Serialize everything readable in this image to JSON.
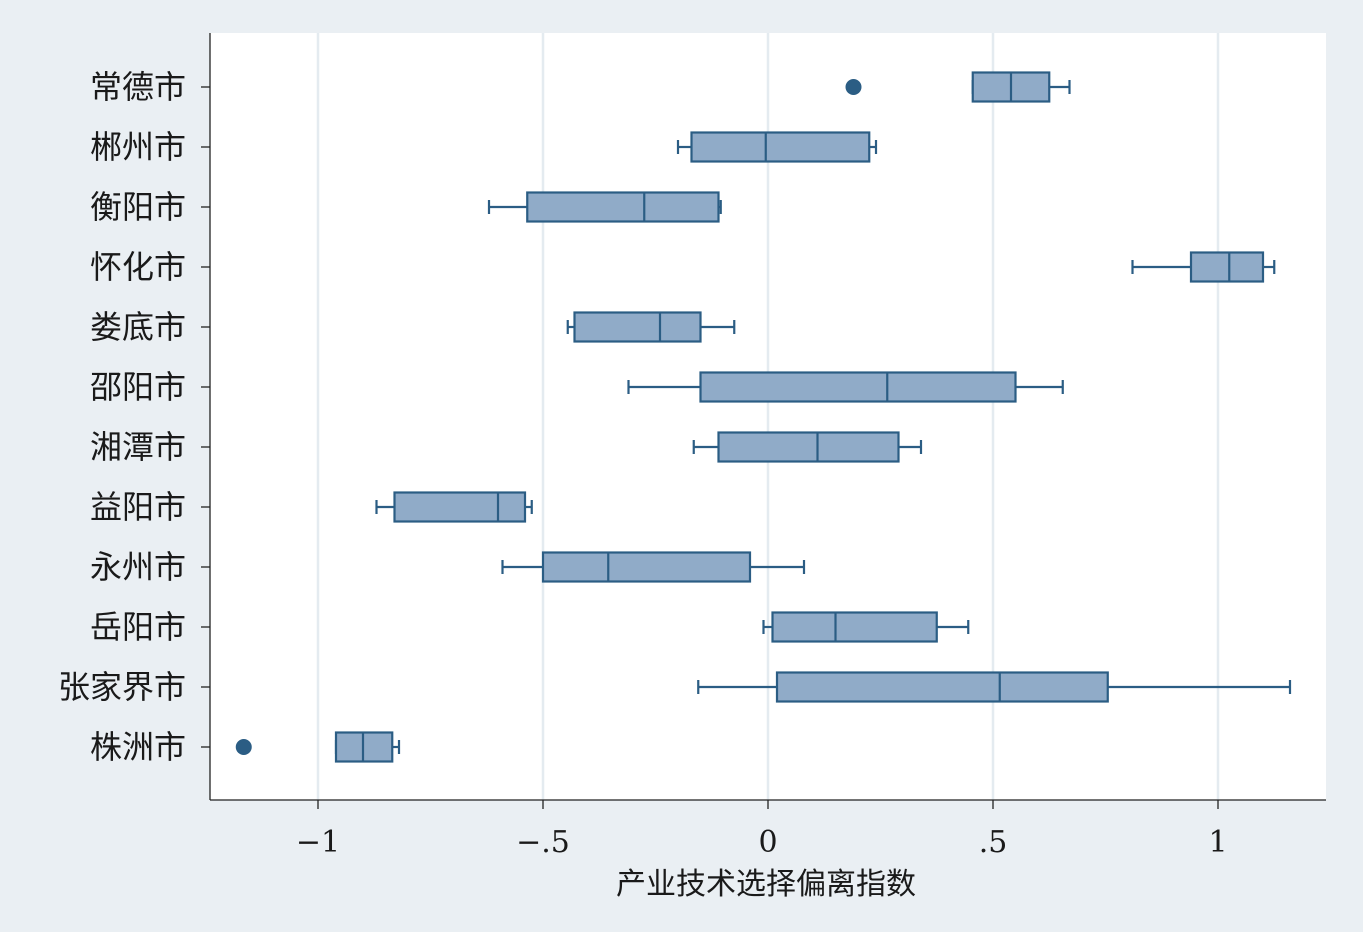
{
  "chart_data": {
    "type": "box",
    "orientation": "horizontal",
    "xlabel": "产业技术选择偏离指数",
    "ylabel": "",
    "title": "",
    "xlim": [
      -1.24,
      1.24
    ],
    "xticks": [
      -1,
      -0.5,
      0,
      0.5,
      1
    ],
    "xtick_labels": [
      "−1",
      "−.5",
      "0",
      ".5",
      "1"
    ],
    "grid": "vertical",
    "colors": {
      "background": "#eaeff3",
      "plot_background": "#ffffff",
      "box_fill": "#90abc8",
      "box_stroke": "#2b5d84",
      "outlier": "#2b5d84",
      "grid": "#e4ebf0",
      "axis": "#222222"
    },
    "categories": [
      "常德市",
      "郴州市",
      "衡阳市",
      "怀化市",
      "娄底市",
      "邵阳市",
      "湘潭市",
      "益阳市",
      "永州市",
      "岳阳市",
      "张家界市",
      "株洲市"
    ],
    "boxes": [
      {
        "label": "常德市",
        "whisker_low": 0.455,
        "q1": 0.455,
        "median": 0.54,
        "q3": 0.625,
        "whisker_high": 0.67,
        "outliers": [
          0.19
        ]
      },
      {
        "label": "郴州市",
        "whisker_low": -0.2,
        "q1": -0.17,
        "median": -0.005,
        "q3": 0.225,
        "whisker_high": 0.24,
        "outliers": []
      },
      {
        "label": "衡阳市",
        "whisker_low": -0.62,
        "q1": -0.535,
        "median": -0.275,
        "q3": -0.11,
        "whisker_high": -0.105,
        "outliers": []
      },
      {
        "label": "怀化市",
        "whisker_low": 0.81,
        "q1": 0.94,
        "median": 1.025,
        "q3": 1.1,
        "whisker_high": 1.125,
        "outliers": []
      },
      {
        "label": "娄底市",
        "whisker_low": -0.445,
        "q1": -0.43,
        "median": -0.24,
        "q3": -0.15,
        "whisker_high": -0.075,
        "outliers": []
      },
      {
        "label": "邵阳市",
        "whisker_low": -0.31,
        "q1": -0.15,
        "median": 0.265,
        "q3": 0.55,
        "whisker_high": 0.655,
        "outliers": []
      },
      {
        "label": "湘潭市",
        "whisker_low": -0.165,
        "q1": -0.11,
        "median": 0.11,
        "q3": 0.29,
        "whisker_high": 0.34,
        "outliers": []
      },
      {
        "label": "益阳市",
        "whisker_low": -0.87,
        "q1": -0.83,
        "median": -0.6,
        "q3": -0.54,
        "whisker_high": -0.525,
        "outliers": []
      },
      {
        "label": "永州市",
        "whisker_low": -0.59,
        "q1": -0.5,
        "median": -0.355,
        "q3": -0.04,
        "whisker_high": 0.08,
        "outliers": []
      },
      {
        "label": "岳阳市",
        "whisker_low": -0.01,
        "q1": 0.01,
        "median": 0.15,
        "q3": 0.375,
        "whisker_high": 0.445,
        "outliers": []
      },
      {
        "label": "张家界市",
        "whisker_low": -0.155,
        "q1": 0.02,
        "median": 0.515,
        "q3": 0.755,
        "whisker_high": 1.16,
        "outliers": []
      },
      {
        "label": "株洲市",
        "whisker_low": -0.96,
        "q1": -0.96,
        "median": -0.9,
        "q3": -0.835,
        "whisker_high": -0.82,
        "outliers": [
          -1.165
        ]
      }
    ]
  }
}
